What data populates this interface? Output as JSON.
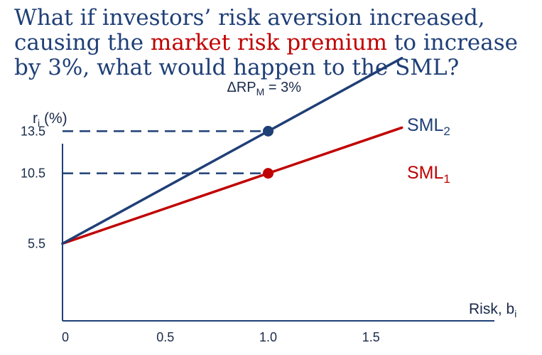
{
  "title": {
    "line1": "What if investors’ risk aversion increased,",
    "line2_before": "causing the ",
    "line2_highlight": "market risk premium",
    "line2_after": " to increase",
    "line3": "by 3%, what would happen to the SML?"
  },
  "colors": {
    "title": "#1f3f77",
    "highlight": "#c00000",
    "sml1": "#c00000",
    "sml2": "#1f3f77",
    "axis": "#1f3f77",
    "text": "#1a2a4a"
  },
  "chart_data": {
    "type": "line",
    "ylabel": {
      "main": "r",
      "sub": "i",
      "rest": " (%)"
    },
    "xlabel": {
      "main": "Risk, b",
      "sub": "i"
    },
    "xlim": [
      0,
      2.1
    ],
    "ylim": [
      0,
      20
    ],
    "x_ticks": [
      {
        "value": 0,
        "label": "0"
      },
      {
        "value": 0.5,
        "label": "0.5"
      },
      {
        "value": 1.0,
        "label": "1.0"
      },
      {
        "value": 1.5,
        "label": "1.5"
      }
    ],
    "y_ticks": [
      {
        "value": 5.5,
        "label": "5.5"
      },
      {
        "value": 10.5,
        "label": "10.5"
      },
      {
        "value": 13.5,
        "label": "13.5"
      }
    ],
    "series": [
      {
        "id": "sml1",
        "label_main": "SML",
        "label_sub": "1",
        "color": "#c00000",
        "x": [
          0,
          1.0,
          1.65
        ],
        "y": [
          5.5,
          10.5,
          13.75
        ]
      },
      {
        "id": "sml2",
        "label_main": "SML",
        "label_sub": "2",
        "color": "#1f3f77",
        "x": [
          0,
          1.0,
          1.65
        ],
        "y": [
          5.5,
          13.5,
          18.7
        ]
      }
    ],
    "points": [
      {
        "series": "sml2",
        "x": 1.0,
        "y": 13.5
      },
      {
        "series": "sml1",
        "x": 1.0,
        "y": 10.5
      }
    ],
    "guides": [
      {
        "x": 1.0,
        "y": 13.5
      },
      {
        "x": 1.0,
        "y": 10.5
      }
    ],
    "annotation": {
      "prefix": "ΔRP",
      "sub": "M",
      "suffix": " = 3%",
      "x": 0.98,
      "y": 16.3
    }
  }
}
